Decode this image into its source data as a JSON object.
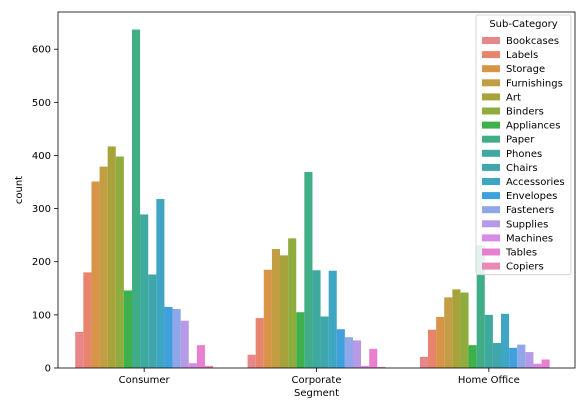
{
  "chart_data": {
    "type": "bar",
    "title": "",
    "xlabel": "Segment",
    "ylabel": "count",
    "categories": [
      "Consumer",
      "Corporate",
      "Home Office"
    ],
    "ylim": [
      0,
      670
    ],
    "yticks": [
      0,
      100,
      200,
      300,
      400,
      500,
      600
    ],
    "grid": false,
    "legend": {
      "title": "Sub-Category",
      "position": "top-right"
    },
    "series": [
      {
        "name": "Bookcases",
        "color": "#e8878a",
        "values": [
          68,
          25,
          21
        ]
      },
      {
        "name": "Labels",
        "color": "#e8836d",
        "values": [
          180,
          94,
          72
        ]
      },
      {
        "name": "Storage",
        "color": "#d79447",
        "values": [
          351,
          185,
          96
        ]
      },
      {
        "name": "Furnishings",
        "color": "#c29d43",
        "values": [
          379,
          224,
          133
        ]
      },
      {
        "name": "Art",
        "color": "#a8a23b",
        "values": [
          417,
          212,
          148
        ]
      },
      {
        "name": "Binders",
        "color": "#8ead3e",
        "values": [
          398,
          244,
          142
        ]
      },
      {
        "name": "Appliances",
        "color": "#3fb14c",
        "values": [
          146,
          105,
          43
        ]
      },
      {
        "name": "Paper",
        "color": "#41ad87",
        "values": [
          637,
          369,
          231
        ]
      },
      {
        "name": "Phones",
        "color": "#3eaa9f",
        "values": [
          289,
          184,
          100
        ]
      },
      {
        "name": "Chairs",
        "color": "#3fa6ab",
        "values": [
          176,
          97,
          47
        ]
      },
      {
        "name": "Accessories",
        "color": "#3ea5c2",
        "values": [
          318,
          183,
          102
        ]
      },
      {
        "name": "Envelopes",
        "color": "#3fa0dc",
        "values": [
          115,
          73,
          38
        ]
      },
      {
        "name": "Fasteners",
        "color": "#8fa7e8",
        "values": [
          111,
          58,
          44
        ]
      },
      {
        "name": "Supplies",
        "color": "#b69ae6",
        "values": [
          89,
          52,
          30
        ]
      },
      {
        "name": "Machines",
        "color": "#d88be5",
        "values": [
          9,
          4,
          8
        ]
      },
      {
        "name": "Tables",
        "color": "#e97fd0",
        "values": [
          43,
          36,
          16
        ]
      },
      {
        "name": "Copiers",
        "color": "#ea89b6",
        "values": [
          4,
          2,
          0
        ]
      }
    ]
  }
}
